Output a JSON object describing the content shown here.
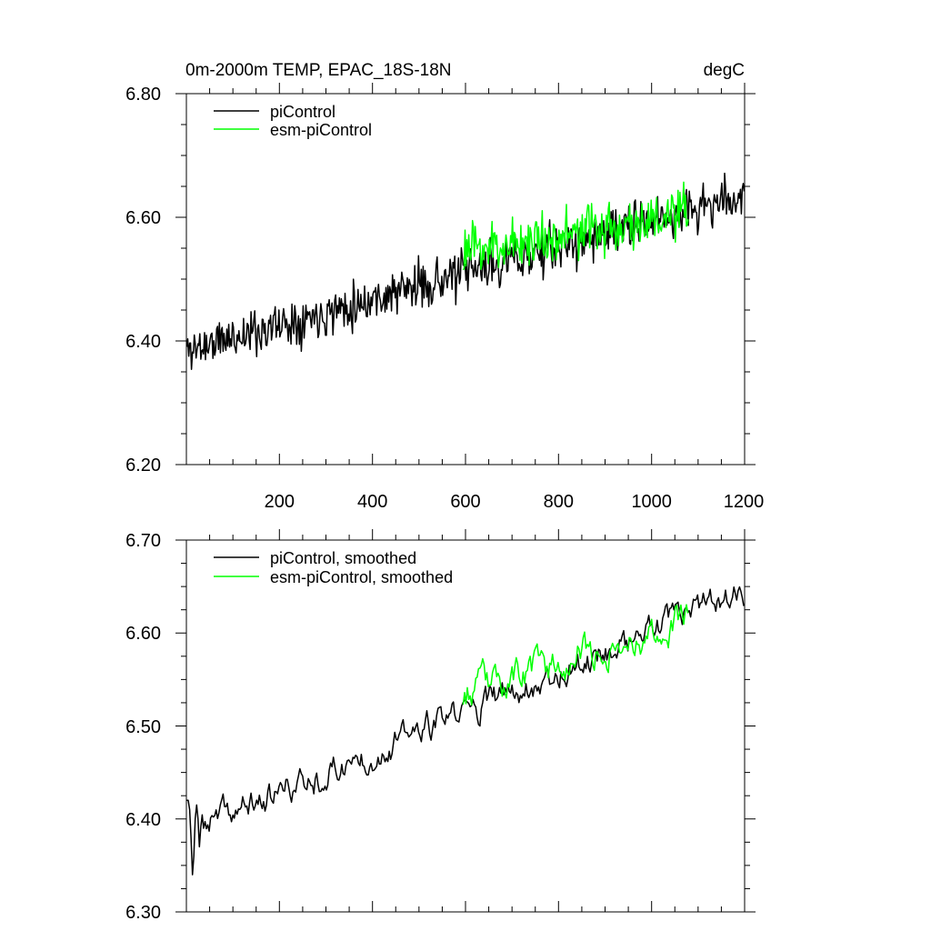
{
  "chart_data": [
    {
      "type": "line",
      "title": "0m-2000m TEMP, EPAC_18S-18N",
      "units": "degC",
      "xlim": [
        0,
        1200
      ],
      "ylim": [
        6.2,
        6.8
      ],
      "x_ticks": [
        200,
        400,
        600,
        800,
        1000,
        1200
      ],
      "x_tick_labels": [
        "200",
        "400",
        "600",
        "800",
        "1000",
        "1200"
      ],
      "y_ticks": [
        6.2,
        6.4,
        6.6,
        6.8
      ],
      "y_tick_labels": [
        "6.20",
        "6.40",
        "6.60",
        "6.80"
      ],
      "series": [
        {
          "name": "piControl",
          "color": "#000000",
          "x_range": [
            1,
            1200
          ],
          "trend_start": 6.385,
          "trend_end": 6.635,
          "noise_amplitude": 0.035,
          "seed": 11
        },
        {
          "name": "esm-piControl",
          "color": "#00ff00",
          "x_range": [
            595,
            1080
          ],
          "trend_start": 6.545,
          "trend_end": 6.605,
          "noise_amplitude": 0.04,
          "seed": 23
        }
      ]
    },
    {
      "type": "line",
      "title": "",
      "units": "",
      "xlim": [
        0,
        1200
      ],
      "ylim": [
        6.3,
        6.7
      ],
      "x_ticks": [
        200,
        400,
        600,
        800,
        1000,
        1200
      ],
      "x_tick_labels": [],
      "y_ticks": [
        6.3,
        6.4,
        6.5,
        6.6,
        6.7
      ],
      "y_tick_labels": [
        "6.30",
        "6.40",
        "6.50",
        "6.60",
        "6.70"
      ],
      "series": [
        {
          "name": "piControl, smoothed",
          "color": "#000000",
          "x_range": [
            1,
            1200
          ],
          "trend_start": 6.385,
          "trend_end": 6.645,
          "noise_amplitude": 0.012,
          "seed": 37,
          "start_values": [
            6.42,
            6.42,
            6.41,
            6.38,
            6.34,
            6.36,
            6.4,
            6.415,
            6.4,
            6.37
          ]
        },
        {
          "name": "esm-piControl, smoothed",
          "color": "#00ff00",
          "x_range": [
            595,
            1080
          ],
          "trend_start": 6.535,
          "trend_end": 6.615,
          "noise_amplitude": 0.014,
          "seed": 53
        }
      ]
    }
  ]
}
